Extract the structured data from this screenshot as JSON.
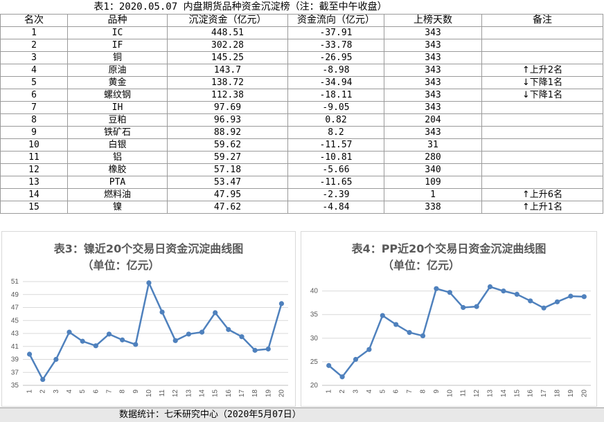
{
  "table": {
    "title": "表1：2020.05.07 内盘期货品种资金沉淀榜（注：截至中午收盘）",
    "headers": [
      "名次",
      "品种",
      "沉淀资金（亿元）",
      "资金流向（亿元）",
      "上榜天数",
      "备注"
    ],
    "rows": [
      {
        "rank": "1",
        "name": "IC",
        "funds": "448.51",
        "flow": "-37.91",
        "days": "343",
        "note": ""
      },
      {
        "rank": "2",
        "name": "IF",
        "funds": "302.28",
        "flow": "-33.78",
        "days": "343",
        "note": ""
      },
      {
        "rank": "3",
        "name": "铜",
        "funds": "145.25",
        "flow": "-26.95",
        "days": "343",
        "note": ""
      },
      {
        "rank": "4",
        "name": "原油",
        "funds": "143.7",
        "flow": "-8.98",
        "days": "343",
        "note": "↑上升2名"
      },
      {
        "rank": "5",
        "name": "黄金",
        "funds": "138.72",
        "flow": "-34.94",
        "days": "343",
        "note": "↓下降1名"
      },
      {
        "rank": "6",
        "name": "螺纹钢",
        "funds": "112.38",
        "flow": "-18.11",
        "days": "343",
        "note": "↓下降1名"
      },
      {
        "rank": "7",
        "name": "IH",
        "funds": "97.69",
        "flow": "-9.05",
        "days": "343",
        "note": ""
      },
      {
        "rank": "8",
        "name": "豆粕",
        "funds": "96.93",
        "flow": "0.82",
        "days": "204",
        "note": ""
      },
      {
        "rank": "9",
        "name": "铁矿石",
        "funds": "88.92",
        "flow": "8.2",
        "days": "343",
        "note": ""
      },
      {
        "rank": "10",
        "name": "白银",
        "funds": "59.62",
        "flow": "-11.57",
        "days": "31",
        "note": ""
      },
      {
        "rank": "11",
        "name": "铝",
        "funds": "59.27",
        "flow": "-10.81",
        "days": "280",
        "note": ""
      },
      {
        "rank": "12",
        "name": "橡胶",
        "funds": "57.18",
        "flow": "-5.66",
        "days": "340",
        "note": ""
      },
      {
        "rank": "13",
        "name": "PTA",
        "funds": "53.47",
        "flow": "-11.65",
        "days": "109",
        "note": ""
      },
      {
        "rank": "14",
        "name": "燃料油",
        "funds": "47.95",
        "flow": "-2.39",
        "days": "1",
        "note": "↑上升6名"
      },
      {
        "rank": "15",
        "name": "镍",
        "funds": "47.62",
        "flow": "-4.84",
        "days": "338",
        "note": "↑上升1名"
      }
    ]
  },
  "chart_data": [
    {
      "type": "line",
      "title": "表3：镍近20个交易日资金沉淀曲线图",
      "subtitle": "（单位：亿元）",
      "categories": [
        "1",
        "2",
        "3",
        "4",
        "5",
        "6",
        "7",
        "8",
        "9",
        "10",
        "11",
        "12",
        "13",
        "14",
        "15",
        "16",
        "17",
        "18",
        "19",
        "20"
      ],
      "series": [
        {
          "values": [
            39.8,
            35.9,
            39.0,
            43.2,
            41.8,
            41.1,
            42.9,
            42.0,
            41.3,
            50.8,
            46.3,
            41.9,
            42.9,
            43.2,
            46.2,
            43.6,
            42.5,
            40.4,
            40.6,
            47.6
          ]
        }
      ],
      "yticks": [
        35,
        37,
        39,
        41,
        43,
        45,
        47,
        49,
        51
      ],
      "ylim": [
        35,
        51
      ],
      "color": "#4f81bd",
      "grid": true
    },
    {
      "type": "line",
      "title": "表4：PP近20个交易日资金沉淀曲线图",
      "subtitle": "（单位：亿元）",
      "categories": [
        "1",
        "2",
        "3",
        "4",
        "5",
        "6",
        "7",
        "8",
        "9",
        "10",
        "11",
        "12",
        "13",
        "14",
        "15",
        "16",
        "17",
        "18",
        "19",
        "20"
      ],
      "series": [
        {
          "values": [
            24.2,
            21.8,
            25.5,
            27.6,
            34.8,
            32.9,
            31.2,
            30.5,
            40.5,
            39.7,
            36.5,
            36.7,
            40.9,
            40.0,
            39.3,
            37.9,
            36.4,
            37.7,
            38.9,
            38.8
          ]
        }
      ],
      "yticks": [
        20,
        25,
        30,
        35,
        40
      ],
      "ylim": [
        20,
        42
      ],
      "color": "#4f81bd",
      "grid": true
    }
  ],
  "footer": {
    "text": "数据统计：七禾研究中心（2020年5月07日）"
  }
}
